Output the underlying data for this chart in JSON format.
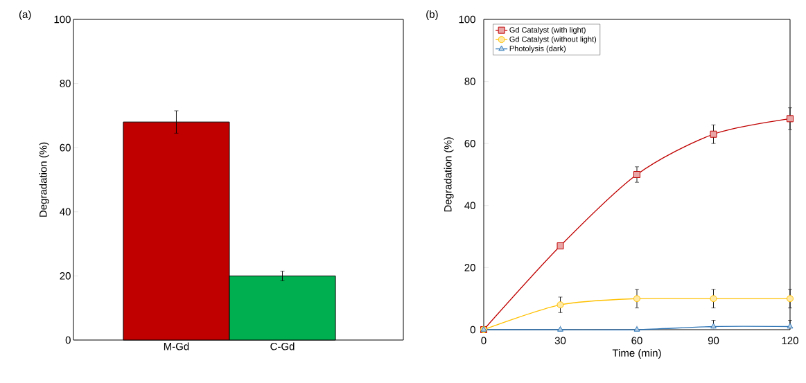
{
  "chart_data": [
    {
      "type": "bar",
      "title": "(a)",
      "ylabel": "Degradation (%)",
      "categories": [
        "M-Gd",
        "C-Gd"
      ],
      "values": [
        68,
        20
      ],
      "colors": [
        "#c00000",
        "#00b050"
      ],
      "errors": [
        3.5,
        1.5
      ],
      "ylim": [
        0,
        100
      ],
      "yticks": [
        0,
        20,
        40,
        60,
        80,
        100
      ]
    },
    {
      "type": "line",
      "title": "(b)",
      "xlabel": "Time (min)",
      "ylabel": "Degradation (%)",
      "x": [
        0,
        30,
        60,
        90,
        120
      ],
      "series": [
        {
          "name": "Gd Catalyst (with light)",
          "color": "#c00000",
          "marker": "square",
          "values": [
            0,
            27,
            50,
            63,
            68
          ],
          "errors": [
            null,
            null,
            2.5,
            3,
            3.5
          ]
        },
        {
          "name": "Gd Catalyst (without light)",
          "color": "#ffc000",
          "marker": "circle",
          "values": [
            0,
            8,
            10,
            10,
            10
          ],
          "errors": [
            null,
            2.5,
            3,
            3,
            3
          ]
        },
        {
          "name": "Photolysis (dark)",
          "color": "#2e75b6",
          "marker": "triangle",
          "values": [
            0,
            0,
            0,
            1,
            1
          ],
          "errors": [
            null,
            null,
            null,
            [
              1,
              3
            ],
            [
              1,
              3
            ]
          ]
        }
      ],
      "xlim": [
        0,
        120
      ],
      "xticks": [
        0,
        30,
        60,
        90,
        120
      ],
      "ylim": [
        0,
        100
      ],
      "yticks": [
        0,
        20,
        40,
        60,
        80,
        100
      ],
      "legend": "top left",
      "line_style": "solid"
    }
  ]
}
